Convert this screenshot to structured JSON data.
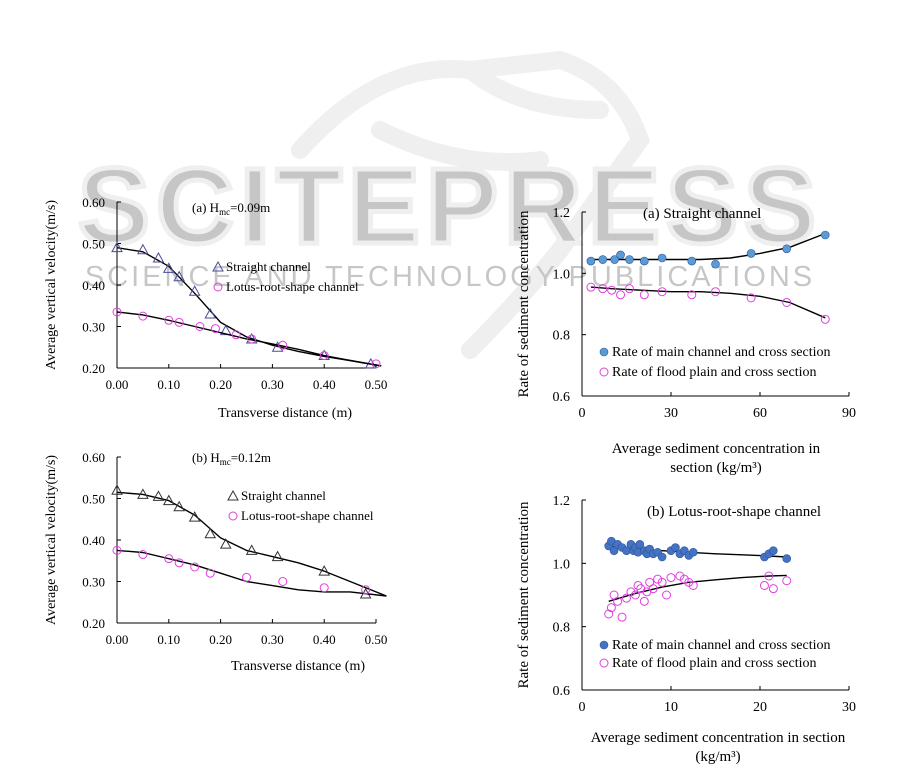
{
  "watermark": {
    "word": "SCITEPRESS",
    "tagline": "SCIENCE AND TECHNOLOGY PUBLICATIONS"
  },
  "chart_data": [
    {
      "id": "a_left",
      "type": "scatter",
      "title": "(a) H",
      "title_sub": "mc",
      "title_tail": "=0.09m",
      "xlabel": "Transverse distance (m)",
      "ylabel": "Average vertical velocity(m/s)",
      "xlim": [
        0,
        0.5
      ],
      "ylim": [
        0.2,
        0.6
      ],
      "xticks": [
        "0.00",
        "0.10",
        "0.20",
        "0.30",
        "0.40",
        "0.50"
      ],
      "yticks": [
        "0.20",
        "0.30",
        "0.40",
        "0.50",
        "0.60"
      ],
      "legend_position": "right-middle",
      "series": [
        {
          "name": "Straight channel",
          "marker": "triangle",
          "color": "#4a4a9a",
          "x": [
            0.0,
            0.05,
            0.08,
            0.1,
            0.12,
            0.15,
            0.18,
            0.21,
            0.26,
            0.31,
            0.4,
            0.49
          ],
          "y": [
            0.49,
            0.485,
            0.465,
            0.44,
            0.42,
            0.385,
            0.33,
            0.29,
            0.27,
            0.25,
            0.23,
            0.21
          ],
          "fit_x": [
            0.0,
            0.05,
            0.1,
            0.15,
            0.2,
            0.25,
            0.3,
            0.35,
            0.4,
            0.45,
            0.51
          ],
          "fit_y": [
            0.49,
            0.48,
            0.445,
            0.38,
            0.31,
            0.275,
            0.255,
            0.24,
            0.228,
            0.218,
            0.205
          ]
        },
        {
          "name": "Lotus-root-shape channel",
          "marker": "circle",
          "color": "#e040e0",
          "x": [
            0.0,
            0.05,
            0.1,
            0.12,
            0.16,
            0.19,
            0.23,
            0.26,
            0.32,
            0.4,
            0.5
          ],
          "y": [
            0.335,
            0.325,
            0.315,
            0.31,
            0.3,
            0.295,
            0.28,
            0.27,
            0.255,
            0.23,
            0.21
          ],
          "fit_x": [
            0.0,
            0.05,
            0.1,
            0.15,
            0.2,
            0.25,
            0.3,
            0.35,
            0.4,
            0.45,
            0.51
          ],
          "fit_y": [
            0.335,
            0.328,
            0.315,
            0.3,
            0.285,
            0.27,
            0.258,
            0.245,
            0.23,
            0.218,
            0.205
          ]
        }
      ]
    },
    {
      "id": "b_left",
      "type": "scatter",
      "title": "(b) H",
      "title_sub": "mc",
      "title_tail": "=0.12m",
      "xlabel": "Transverse distance (m)",
      "ylabel": "Average vertical velocity(m/s)",
      "xlim": [
        0,
        0.5
      ],
      "ylim": [
        0.2,
        0.6
      ],
      "xticks": [
        "0.00",
        "0.10",
        "0.20",
        "0.30",
        "0.40",
        "0.50"
      ],
      "yticks": [
        "0.20",
        "0.30",
        "0.40",
        "0.50",
        "0.60"
      ],
      "legend_position": "right-middle",
      "series": [
        {
          "name": "Straight channel",
          "marker": "triangle",
          "color": "#333333",
          "x": [
            0.0,
            0.05,
            0.08,
            0.1,
            0.12,
            0.15,
            0.18,
            0.21,
            0.26,
            0.31,
            0.4,
            0.48
          ],
          "y": [
            0.52,
            0.51,
            0.505,
            0.495,
            0.48,
            0.455,
            0.415,
            0.39,
            0.375,
            0.36,
            0.325,
            0.27
          ],
          "fit_x": [
            0.0,
            0.05,
            0.1,
            0.15,
            0.2,
            0.25,
            0.3,
            0.35,
            0.4,
            0.45,
            0.52
          ],
          "fit_y": [
            0.515,
            0.51,
            0.495,
            0.46,
            0.405,
            0.375,
            0.36,
            0.345,
            0.325,
            0.3,
            0.265
          ]
        },
        {
          "name": "Lotus-root-shape channel",
          "marker": "circle",
          "color": "#e040e0",
          "x": [
            0.0,
            0.05,
            0.1,
            0.12,
            0.15,
            0.18,
            0.25,
            0.32,
            0.4,
            0.48
          ],
          "y": [
            0.375,
            0.365,
            0.355,
            0.345,
            0.335,
            0.32,
            0.31,
            0.3,
            0.285,
            0.28
          ],
          "fit_x": [
            0.0,
            0.05,
            0.1,
            0.15,
            0.2,
            0.25,
            0.3,
            0.35,
            0.4,
            0.45,
            0.52
          ],
          "fit_y": [
            0.375,
            0.37,
            0.355,
            0.34,
            0.32,
            0.3,
            0.29,
            0.28,
            0.275,
            0.275,
            0.265
          ]
        }
      ]
    },
    {
      "id": "a_right",
      "type": "scatter",
      "title": "(a) Straight channel",
      "xlabel_lines": [
        "Average sediment concentration in",
        "section (kg/m³)"
      ],
      "ylabel": "Rate of sediment concentration",
      "xlim": [
        0,
        90
      ],
      "ylim": [
        0.6,
        1.2
      ],
      "xticks": [
        "0",
        "30",
        "60",
        "90"
      ],
      "yticks": [
        "0.6",
        "0.8",
        "1.0",
        "1.2"
      ],
      "legend_position": "bottom-right",
      "series": [
        {
          "name": "Rate of main channel and cross section",
          "marker": "filled-circle",
          "color": "#5b9bd5",
          "x": [
            3,
            7,
            11,
            13,
            16,
            21,
            27,
            37,
            45,
            57,
            69,
            82
          ],
          "y": [
            1.04,
            1.045,
            1.045,
            1.06,
            1.045,
            1.04,
            1.05,
            1.04,
            1.03,
            1.065,
            1.08,
            1.125
          ],
          "fit_x": [
            3,
            10,
            20,
            30,
            40,
            50,
            60,
            70,
            82
          ],
          "fit_y": [
            1.045,
            1.045,
            1.045,
            1.045,
            1.045,
            1.05,
            1.065,
            1.085,
            1.13
          ]
        },
        {
          "name": "Rate of flood plain and cross section",
          "marker": "circle",
          "color": "#e040e0",
          "x": [
            3,
            7,
            10,
            13,
            16,
            21,
            27,
            37,
            45,
            57,
            69,
            82
          ],
          "y": [
            0.955,
            0.95,
            0.945,
            0.93,
            0.95,
            0.93,
            0.94,
            0.93,
            0.94,
            0.92,
            0.905,
            0.85
          ],
          "fit_x": [
            3,
            10,
            20,
            30,
            40,
            50,
            60,
            70,
            82
          ],
          "fit_y": [
            0.955,
            0.95,
            0.945,
            0.94,
            0.94,
            0.935,
            0.925,
            0.905,
            0.855
          ]
        }
      ]
    },
    {
      "id": "b_right",
      "type": "scatter",
      "title": "(b) Lotus-root-shape channel",
      "xlabel_lines": [
        "Average sediment concentration in section",
        "(kg/m³)"
      ],
      "ylabel": "Rate of sediment concentration",
      "xlim": [
        0,
        30
      ],
      "ylim": [
        0.6,
        1.2
      ],
      "xticks": [
        "0",
        "10",
        "20",
        "30"
      ],
      "yticks": [
        "0.6",
        "0.8",
        "1.0",
        "1.2"
      ],
      "legend_position": "bottom-right",
      "series": [
        {
          "name": "Rate of main channel and cross section",
          "marker": "filled-circle",
          "color": "#4472c4",
          "x": [
            3,
            3.3,
            3.6,
            4,
            4.5,
            5,
            5.5,
            5.8,
            6,
            6.3,
            6.5,
            7,
            7.3,
            7.6,
            8,
            8.5,
            9,
            10,
            10.5,
            11,
            11.5,
            12,
            12.5,
            20.5,
            21,
            21.5,
            23
          ],
          "y": [
            1.055,
            1.07,
            1.04,
            1.06,
            1.05,
            1.04,
            1.06,
            1.04,
            1.05,
            1.035,
            1.06,
            1.04,
            1.03,
            1.045,
            1.03,
            1.035,
            1.02,
            1.04,
            1.05,
            1.03,
            1.04,
            1.025,
            1.035,
            1.02,
            1.03,
            1.04,
            1.015
          ],
          "fit_x": [
            3,
            6,
            9,
            12,
            15,
            18,
            21,
            23
          ],
          "fit_y": [
            1.055,
            1.045,
            1.04,
            1.035,
            1.03,
            1.027,
            1.023,
            1.02
          ]
        },
        {
          "name": "Rate of flood plain and cross section",
          "marker": "circle",
          "color": "#e040e0",
          "x": [
            3,
            3.3,
            3.6,
            4,
            4.5,
            5,
            5.5,
            6,
            6.3,
            6.6,
            7,
            7.3,
            7.6,
            8,
            8.5,
            9,
            9.5,
            10,
            11,
            11.5,
            12,
            12.5,
            20.5,
            21,
            21.5,
            23
          ],
          "y": [
            0.84,
            0.86,
            0.9,
            0.88,
            0.83,
            0.89,
            0.91,
            0.9,
            0.93,
            0.92,
            0.88,
            0.91,
            0.94,
            0.92,
            0.95,
            0.94,
            0.9,
            0.955,
            0.96,
            0.95,
            0.94,
            0.93,
            0.93,
            0.96,
            0.92,
            0.945
          ],
          "fit_x": [
            3,
            6,
            9,
            12,
            15,
            18,
            21,
            23
          ],
          "fit_y": [
            0.88,
            0.905,
            0.925,
            0.94,
            0.948,
            0.955,
            0.96,
            0.962
          ]
        }
      ]
    }
  ]
}
